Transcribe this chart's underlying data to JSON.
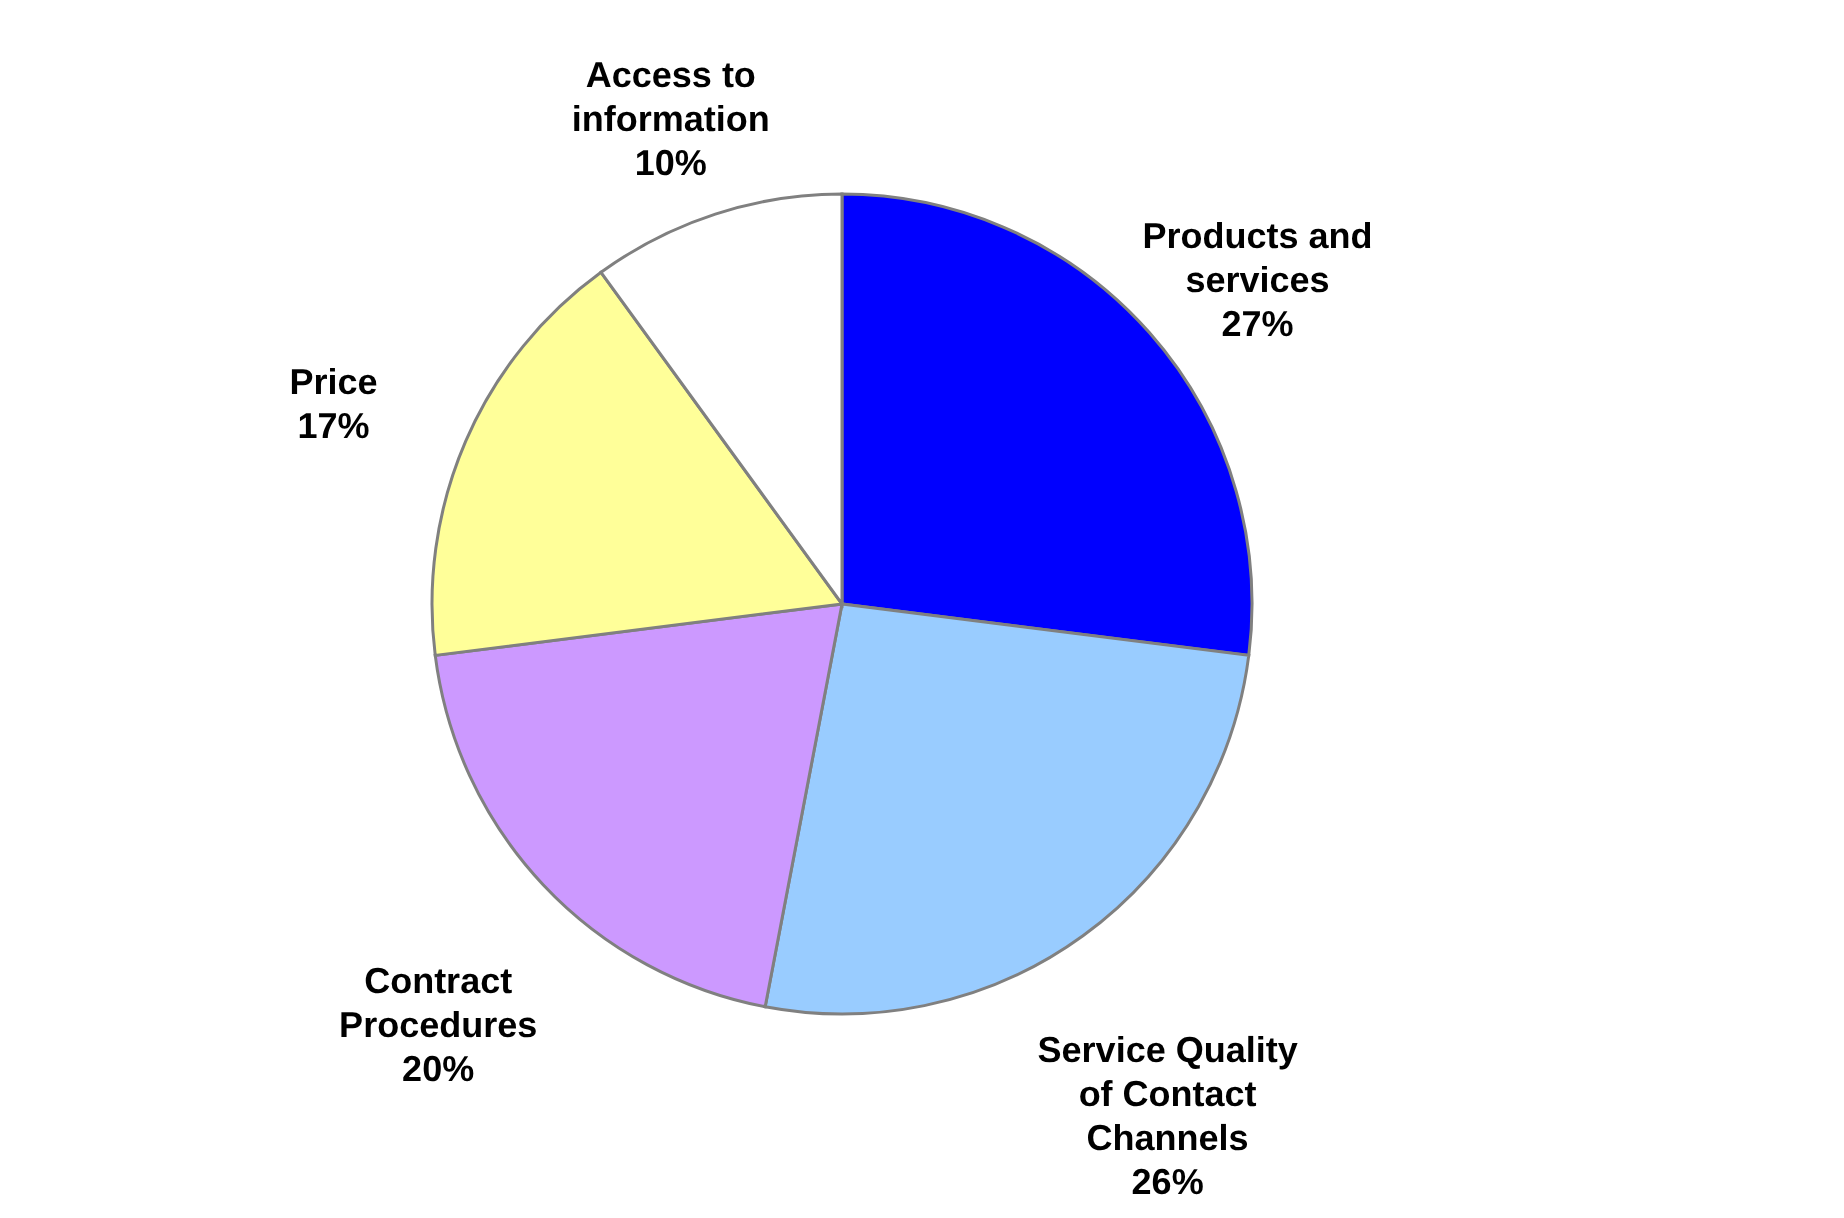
{
  "chart_data": {
    "type": "pie",
    "categories": [
      "Products and services",
      "Service Quality of Contact Channels",
      "Contract Procedures",
      "Price",
      "Access to information"
    ],
    "values": [
      27,
      26,
      20,
      17,
      10
    ],
    "value_labels": [
      "27%",
      "26%",
      "20%",
      "17%",
      "10%"
    ],
    "colors": [
      "#0000ff",
      "#99ccff",
      "#cc99ff",
      "#ffff99",
      "#ffffff"
    ]
  }
}
